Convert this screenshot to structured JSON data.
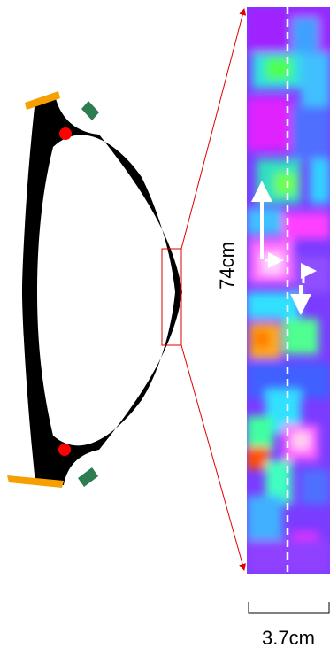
{
  "labels": {
    "height": "74cm",
    "width": "3.7cm"
  }
}
